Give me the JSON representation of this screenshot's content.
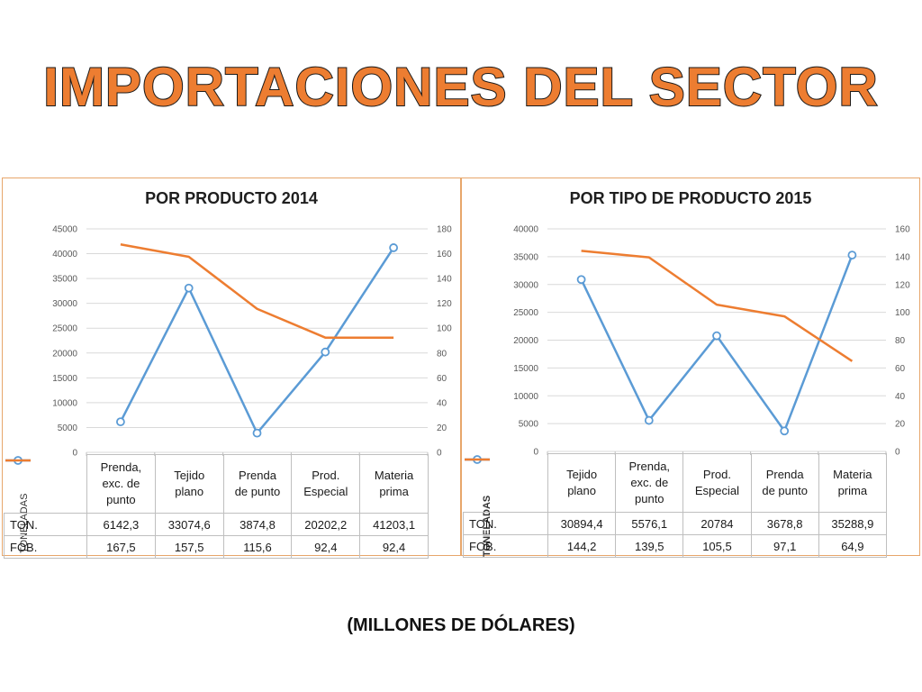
{
  "title": "IMPORTACIONES DEL SECTOR",
  "footer": "(MILLONES DE DÓLARES)",
  "colors": {
    "ton": "#5b9bd5",
    "fob": "#ed7d31",
    "title_fill": "#ed7d31",
    "panel_border": "#e7a66b"
  },
  "chart_data": [
    {
      "type": "line",
      "title": "POR PRODUCTO 2014",
      "ylabel": "TONELADAS",
      "ylim": [
        0,
        45000
      ],
      "yticks": [
        "0",
        "5000",
        "10000",
        "15000",
        "20000",
        "25000",
        "30000",
        "35000",
        "40000",
        "45000"
      ],
      "y2lim": [
        0,
        180
      ],
      "y2ticks": [
        "0",
        "20",
        "40",
        "60",
        "80",
        "100",
        "120",
        "140",
        "160",
        "180"
      ],
      "categories": [
        [
          "Prenda,",
          "exc. de",
          "punto"
        ],
        [
          "Tejido",
          "plano"
        ],
        [
          "Prenda",
          "de punto"
        ],
        [
          "Prod.",
          "Especial"
        ],
        [
          "Materia",
          "prima"
        ]
      ],
      "series": [
        {
          "name": "TON.",
          "axis": "left",
          "marker": true,
          "values": [
            6142.3,
            33074.6,
            3874.8,
            20202.2,
            41203.1
          ],
          "labels": [
            "6142,3",
            "33074,6",
            "3874,8",
            "20202,2",
            "41203,1"
          ]
        },
        {
          "name": "FOB.",
          "axis": "right",
          "marker": false,
          "values": [
            167.5,
            157.5,
            115.6,
            92.4,
            92.4
          ],
          "labels": [
            "167,5",
            "157,5",
            "115,6",
            "92,4",
            "92,4"
          ]
        }
      ],
      "grid": true,
      "legend": "data-table"
    },
    {
      "type": "line",
      "title": "POR TIPO DE PRODUCTO 2015",
      "ylabel": "TONELADAS",
      "ylim": [
        0,
        40000
      ],
      "yticks": [
        "0",
        "5000",
        "10000",
        "15000",
        "20000",
        "25000",
        "30000",
        "35000",
        "40000"
      ],
      "y2lim": [
        0,
        160
      ],
      "y2ticks": [
        "0",
        "20",
        "40",
        "60",
        "80",
        "100",
        "120",
        "140",
        "160"
      ],
      "categories": [
        [
          "Tejido",
          "plano"
        ],
        [
          "Prenda,",
          "exc. de",
          "punto"
        ],
        [
          "Prod.",
          "Especial"
        ],
        [
          "Prenda",
          "de punto"
        ],
        [
          "Materia",
          "prima"
        ]
      ],
      "series": [
        {
          "name": "TON.",
          "axis": "left",
          "marker": true,
          "values": [
            30894.4,
            5576.1,
            20784,
            3678.8,
            35288.9
          ],
          "labels": [
            "30894,4",
            "5576,1",
            "20784",
            "3678,8",
            "35288,9"
          ]
        },
        {
          "name": "FOB.",
          "axis": "right",
          "marker": false,
          "values": [
            144.2,
            139.5,
            105.5,
            97.1,
            64.9
          ],
          "labels": [
            "144,2",
            "139,5",
            "105,5",
            "97,1",
            "64,9"
          ]
        }
      ],
      "grid": true,
      "legend": "data-table"
    }
  ]
}
